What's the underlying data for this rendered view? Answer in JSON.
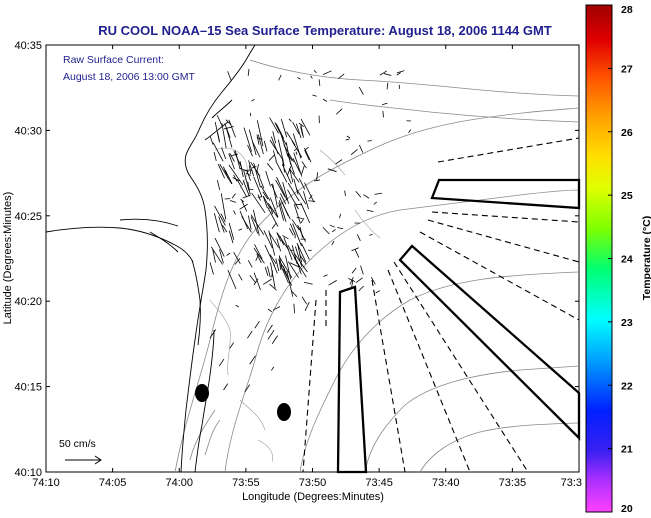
{
  "title": "RU COOL  NOAA–15  Sea Surface Temperature:  August 18, 2006 1144 GMT",
  "annotation": {
    "line1": "Raw Surface Current:",
    "line2": "August 18, 2006 13:00 GMT"
  },
  "axes": {
    "xlabel": "Longitude (Degrees:Minutes)",
    "ylabel": "Latitude (Degrees:Minutes)",
    "x_ticks": [
      "74:10",
      "74:05",
      "74:00",
      "73:55",
      "73:50",
      "73:45",
      "73:40",
      "73:35",
      "73:3"
    ],
    "y_ticks": [
      "40:35",
      "40:30",
      "40:25",
      "40:20",
      "40:15",
      "40:10"
    ]
  },
  "scale": {
    "label": "50 cm/s"
  },
  "colorbar": {
    "label": "Temperature (°C)",
    "ticks": [
      "28",
      "27",
      "26",
      "25",
      "24",
      "23",
      "22",
      "21",
      "20"
    ]
  }
}
